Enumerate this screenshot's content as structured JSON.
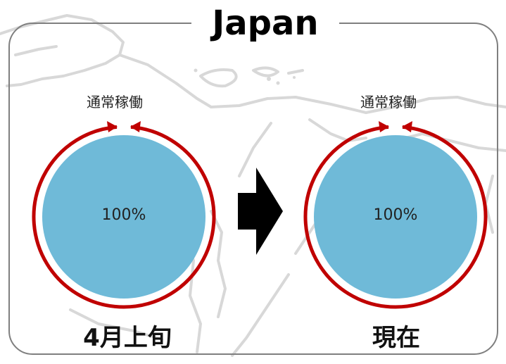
{
  "title": "Japan",
  "colors": {
    "pie_fill": "#6fbad8",
    "ring": "#c00000",
    "frame": "#7f7f7f",
    "map_outline": "#d6d6d6"
  },
  "panels": [
    {
      "status_label": "通常稼働",
      "value_label": "100%",
      "period_label": "4月上旬",
      "value": 100
    },
    {
      "status_label": "通常稼働",
      "value_label": "100%",
      "period_label": "現在",
      "value": 100
    }
  ]
}
